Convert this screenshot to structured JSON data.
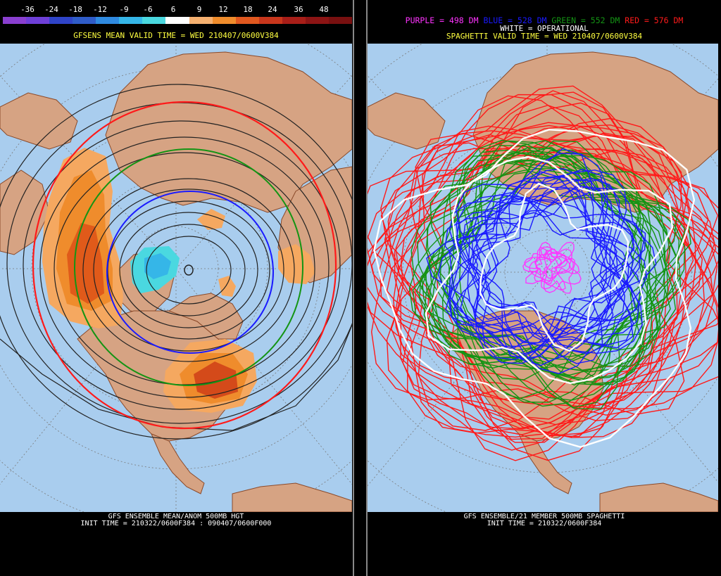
{
  "left": {
    "colorbar": {
      "ticks": [
        "-36",
        "-24",
        "-18",
        "-12",
        "-9",
        "-6",
        "6",
        "9",
        "12",
        "18",
        "24",
        "36",
        "48"
      ],
      "colors": [
        "#8a3fd0",
        "#6e3fd8",
        "#2f44c8",
        "#2f5cc8",
        "#2f8ae0",
        "#35b6e8",
        "#4ad8e0",
        "#ffffff",
        "#f5b070",
        "#ef8c2c",
        "#e0581f",
        "#c8361c",
        "#a81e18",
        "#8c1414",
        "#781010"
      ]
    },
    "title": "GFSENS MEAN VALID TIME = WED 210407/0600V384",
    "footer_line1": "GFS ENSEMBLE MEAN/ANOM 500MB HGT",
    "footer_line2": "INIT TIME = 210322/0600F384 : 090407/0600F000"
  },
  "right": {
    "legend": {
      "purple": "PURPLE = 498 DM",
      "blue": "BLUE = 528 DM",
      "green": "GREEN = 552 DM",
      "red": "RED = 576 DM",
      "white": "WHITE = OPERATIONAL"
    },
    "title": "SPAGHETTI VALID TIME = WED 210407/0600V384",
    "footer_line1": "GFS ENSEMBLE/21 MEMBER 500MB SPAGHETTI",
    "footer_line2": "INIT TIME = 210322/0600F384"
  },
  "colors": {
    "ocean": "#a9cdee",
    "land": "#d6a383",
    "coast": "#8b4a2a",
    "title_yellow": "#ffff40",
    "purple": "#ff33ff",
    "blue": "#1a1aff",
    "green": "#149414",
    "red": "#ff1a1a",
    "white": "#ffffff"
  }
}
